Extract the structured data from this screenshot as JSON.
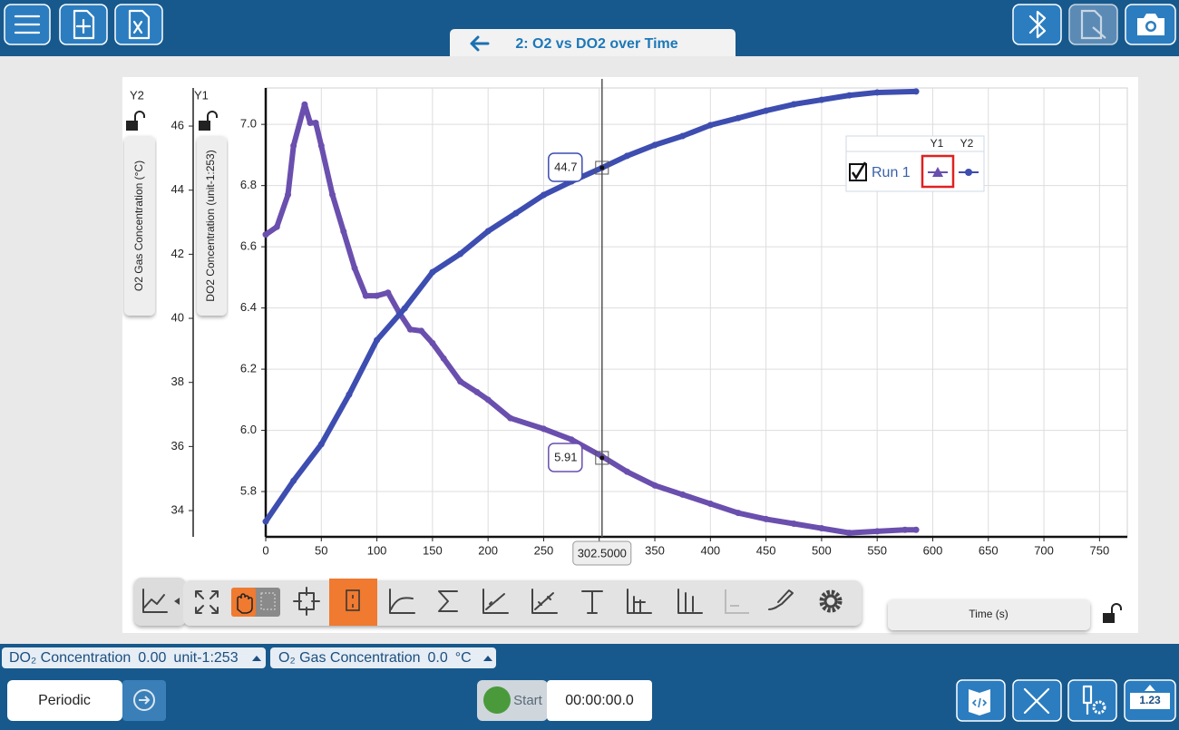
{
  "chart_data": {
    "type": "line",
    "title": "2: O2 vs DO2 over Time",
    "xlabel": "Time (s)",
    "ylabel": "DO2 Concentration (unit-1:253)",
    "y2label": "O2 Gas Concentration (°C)",
    "y1_axis_tag": "Y1",
    "y2_axis_tag": "Y2",
    "xlim": [
      0,
      775
    ],
    "xticks": [
      0,
      50,
      100,
      150,
      200,
      250,
      300,
      350,
      400,
      450,
      500,
      550,
      600,
      650,
      700,
      750
    ],
    "ylim": [
      5.652,
      7.119
    ],
    "yticks": [
      5.8,
      {
        "value": 6,
        "label": "6.0"
      },
      6.2,
      6.4,
      6.6,
      6.8,
      {
        "value": 7,
        "label": "7.0"
      }
    ],
    "y2lim": [
      33.18,
      47.19
    ],
    "y2ticks": [
      34,
      36,
      38,
      40,
      42,
      44,
      46
    ],
    "grid": true,
    "series": [
      {
        "color": "#6a4fae",
        "marker": "triangle",
        "axis": "y1",
        "x": [
          0,
          10,
          20,
          25,
          35,
          40,
          45,
          50,
          60,
          70,
          80,
          90,
          100,
          110,
          120,
          130,
          140,
          150,
          160,
          175,
          190,
          200,
          220,
          250,
          275,
          302.5,
          325,
          350,
          375,
          400,
          425,
          450,
          475,
          500,
          525,
          550,
          575,
          585
        ],
        "values": [
          6.64,
          6.665,
          6.77,
          6.93,
          7.065,
          7.005,
          7.005,
          6.93,
          6.77,
          6.65,
          6.53,
          6.44,
          6.44,
          6.45,
          6.385,
          6.33,
          6.325,
          6.285,
          6.235,
          6.16,
          6.125,
          6.1,
          6.04,
          6.005,
          5.97,
          5.915,
          5.865,
          5.82,
          5.79,
          5.76,
          5.73,
          5.71,
          5.695,
          5.68,
          5.665,
          5.67,
          5.675,
          5.675
        ]
      },
      {
        "color": "#3d4db0",
        "marker": "circle",
        "axis": "y2",
        "x": [
          0,
          25,
          50,
          75,
          100,
          125,
          150,
          175,
          200,
          225,
          250,
          275,
          302.5,
          325,
          350,
          375,
          400,
          425,
          450,
          475,
          500,
          525,
          550,
          585
        ],
        "values": [
          33.66,
          34.93,
          36.07,
          37.62,
          39.32,
          40.31,
          41.44,
          42.01,
          42.72,
          43.28,
          43.85,
          44.27,
          44.7,
          45.07,
          45.41,
          45.69,
          46.03,
          46.25,
          46.48,
          46.68,
          46.82,
          46.96,
          47.05,
          47.08
        ]
      }
    ],
    "legend": {
      "run": "Run 1",
      "columns": [
        "Y1",
        "Y2"
      ],
      "position": "upper right"
    },
    "cursor": {
      "x": {
        "value": 302.5,
        "label": "302.5000"
      },
      "readouts": [
        {
          "value": 44.7,
          "axis": "y2",
          "color": "#3d4db0"
        },
        {
          "value": 5.91,
          "axis": "y1",
          "color": "#6a4fae"
        }
      ]
    }
  },
  "meters": [
    {
      "name": "DO₂ Concentration",
      "reading": "0.00",
      "unit": "unit-1:253"
    },
    {
      "name": "O₂ Gas Concentration",
      "reading": "0.0",
      "unit": "°C"
    }
  ],
  "collection": {
    "mode": "Periodic",
    "start": "Start",
    "clock": "00:00:00.0",
    "meter_button": "1.23"
  }
}
